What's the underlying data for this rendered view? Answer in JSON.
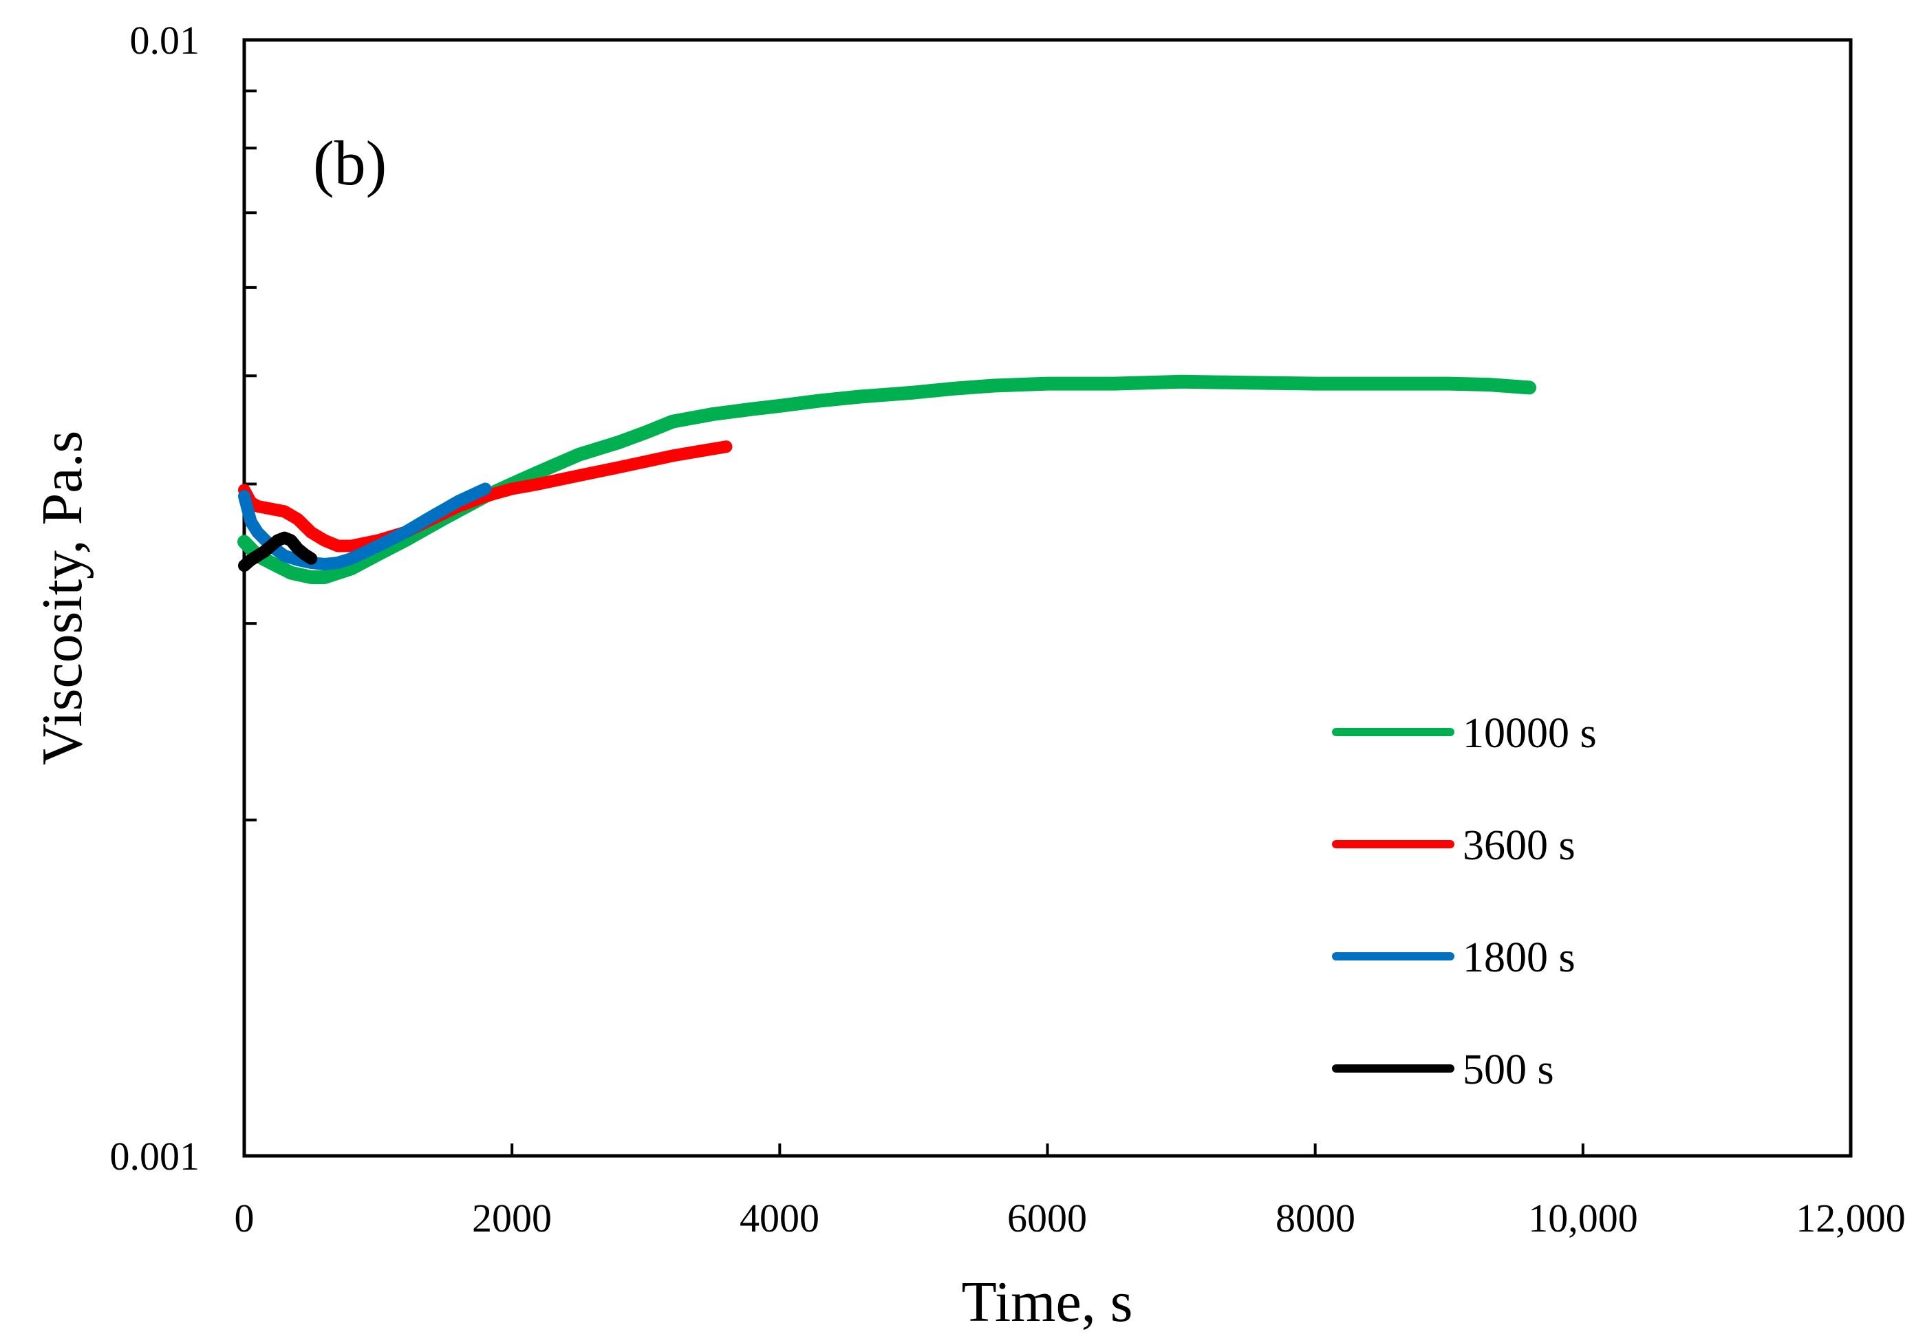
{
  "chart_data": {
    "type": "line",
    "panel_label": "(b)",
    "xlabel": "Time, s",
    "ylabel": "Viscosity, Pa.s",
    "xlim": [
      0,
      12000
    ],
    "ylim": [
      0.001,
      0.01
    ],
    "yscale": "log",
    "grid": false,
    "legend_position": "right-lower",
    "x_ticks": [
      0,
      2000,
      4000,
      6000,
      8000,
      10000,
      12000
    ],
    "x_tick_labels": [
      "0",
      "2000",
      "4000",
      "6000",
      "8000",
      "10,000",
      "12,000"
    ],
    "y_tick_labels": [
      "0.01",
      "0.001"
    ],
    "series": [
      {
        "name": "10000 s",
        "color": "#00B050",
        "x": [
          0,
          100,
          200,
          350,
          500,
          600,
          800,
          1000,
          1200,
          1500,
          1800,
          2000,
          2200,
          2500,
          2800,
          3000,
          3200,
          3500,
          3800,
          4000,
          4300,
          4600,
          5000,
          5300,
          5600,
          6000,
          6500,
          7000,
          7500,
          8000,
          8500,
          9000,
          9300,
          9600
        ],
        "y": [
          0.00355,
          0.00345,
          0.0034,
          0.00333,
          0.0033,
          0.0033,
          0.00336,
          0.00346,
          0.00356,
          0.00373,
          0.0039,
          0.004,
          0.0041,
          0.00425,
          0.00436,
          0.00445,
          0.00455,
          0.00462,
          0.00467,
          0.0047,
          0.00475,
          0.00479,
          0.00483,
          0.00487,
          0.0049,
          0.00492,
          0.00492,
          0.00494,
          0.00493,
          0.00492,
          0.00492,
          0.00492,
          0.00491,
          0.00488
        ]
      },
      {
        "name": "3600 s",
        "color": "#FF0000",
        "x": [
          0,
          50,
          100,
          200,
          300,
          400,
          500,
          600,
          700,
          800,
          1000,
          1200,
          1400,
          1600,
          1800,
          2000,
          2200,
          2500,
          2800,
          3000,
          3200,
          3400,
          3600
        ],
        "y": [
          0.00395,
          0.00385,
          0.00382,
          0.0038,
          0.00378,
          0.00372,
          0.00362,
          0.00356,
          0.00352,
          0.00352,
          0.00356,
          0.00362,
          0.00372,
          0.00382,
          0.0039,
          0.00396,
          0.004,
          0.00407,
          0.00414,
          0.00419,
          0.00424,
          0.00428,
          0.00432
        ]
      },
      {
        "name": "1800 s",
        "color": "#0070C0",
        "x": [
          0,
          50,
          100,
          200,
          300,
          400,
          500,
          600,
          700,
          800,
          1000,
          1200,
          1400,
          1600,
          1800
        ],
        "y": [
          0.0039,
          0.0037,
          0.00362,
          0.00352,
          0.00345,
          0.00342,
          0.0034,
          0.00339,
          0.0034,
          0.00343,
          0.00352,
          0.00362,
          0.00374,
          0.00386,
          0.00396
        ]
      },
      {
        "name": "500 s",
        "color": "#000000",
        "x": [
          0,
          50,
          100,
          150,
          200,
          250,
          300,
          350,
          400,
          450,
          500
        ],
        "y": [
          0.00338,
          0.00342,
          0.00345,
          0.00348,
          0.00352,
          0.00356,
          0.00358,
          0.00356,
          0.0035,
          0.00346,
          0.00343
        ]
      }
    ]
  }
}
